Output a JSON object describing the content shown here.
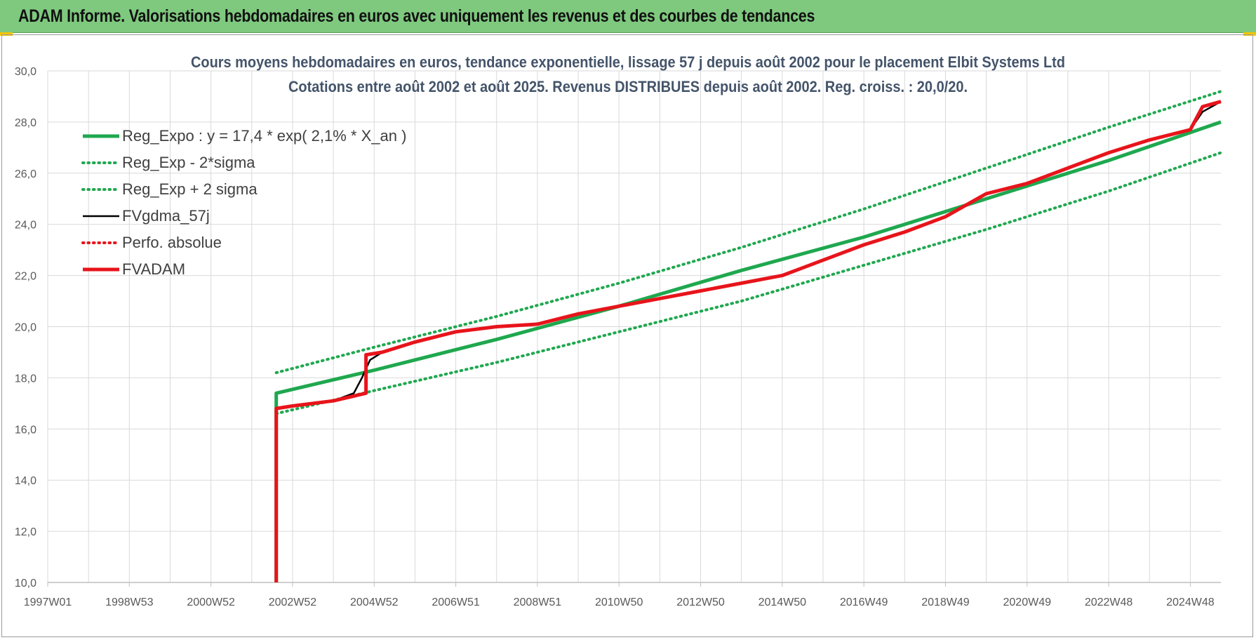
{
  "banner": {
    "title": "ADAM Informe. Valorisations hebdomadaires en euros avec uniquement les revenus et des courbes de tendances"
  },
  "colors": {
    "banner_bg": "#7fc97f",
    "reg_green": "#1fa84f",
    "fv_black": "#000000",
    "adam_red": "#e8141b",
    "grid": "#d9d9d9",
    "title": "#44546a"
  },
  "chart_data": {
    "type": "line",
    "title_lines": [
      "Cours moyens hebdomadaires en euros, tendance exponentielle, lissage 57 j depuis août 2002 pour le placement Elbit Systems Ltd",
      "Cotations entre août 2002 et août 2025. Revenus DISTRIBUES depuis août 2002. Reg. croiss. : 20,0/20."
    ],
    "xlabel": "",
    "ylabel": "",
    "ylim": [
      10,
      30
    ],
    "xlim": [
      1997.0,
      2025.75
    ],
    "y_ticks": [
      "10,0",
      "12,0",
      "14,0",
      "16,0",
      "18,0",
      "20,0",
      "22,0",
      "24,0",
      "26,0",
      "28,0",
      "30,0"
    ],
    "x_ticks": [
      {
        "label": "1997W01",
        "x": 1997.0
      },
      {
        "label": "1998W53",
        "x": 1999.0
      },
      {
        "label": "2000W52",
        "x": 2001.0
      },
      {
        "label": "2002W52",
        "x": 2003.0
      },
      {
        "label": "2004W52",
        "x": 2005.0
      },
      {
        "label": "2006W51",
        "x": 2007.0
      },
      {
        "label": "2008W51",
        "x": 2009.0
      },
      {
        "label": "2010W50",
        "x": 2011.0
      },
      {
        "label": "2012W50",
        "x": 2013.0
      },
      {
        "label": "2014W50",
        "x": 2015.0
      },
      {
        "label": "2016W49",
        "x": 2017.0
      },
      {
        "label": "2018W49",
        "x": 2019.0
      },
      {
        "label": "2020W49",
        "x": 2021.0
      },
      {
        "label": "2022W48",
        "x": 2023.0
      },
      {
        "label": "2024W48",
        "x": 2025.0
      }
    ],
    "grid": true,
    "legend_position": "top-left",
    "series": [
      {
        "name": "Reg_Expo : y = 17,4 * exp( 2,1% *  X_an )",
        "style": "solid-thick",
        "color": "#1fa84f",
        "points": [
          [
            2002.6,
            10.0
          ],
          [
            2002.6,
            17.4
          ],
          [
            2005,
            18.3
          ],
          [
            2008,
            19.5
          ],
          [
            2011,
            20.8
          ],
          [
            2014,
            22.2
          ],
          [
            2017,
            23.5
          ],
          [
            2020,
            25.0
          ],
          [
            2023,
            26.5
          ],
          [
            2025.75,
            28.0
          ]
        ]
      },
      {
        "name": "Reg_Exp - 2*sigma",
        "style": "dotted",
        "color": "#1fa84f",
        "points": [
          [
            2002.6,
            16.6
          ],
          [
            2005,
            17.5
          ],
          [
            2008,
            18.6
          ],
          [
            2011,
            19.8
          ],
          [
            2014,
            21.0
          ],
          [
            2017,
            22.4
          ],
          [
            2020,
            23.8
          ],
          [
            2023,
            25.3
          ],
          [
            2025.75,
            26.8
          ]
        ]
      },
      {
        "name": "Reg_Exp + 2 sigma",
        "style": "dotted",
        "color": "#1fa84f",
        "points": [
          [
            2002.6,
            18.2
          ],
          [
            2005,
            19.2
          ],
          [
            2008,
            20.4
          ],
          [
            2011,
            21.7
          ],
          [
            2014,
            23.1
          ],
          [
            2017,
            24.6
          ],
          [
            2020,
            26.2
          ],
          [
            2023,
            27.8
          ],
          [
            2025.75,
            29.2
          ]
        ]
      },
      {
        "name": "FVgdma_57j",
        "style": "solid",
        "color": "#000000",
        "points": [
          [
            2002.6,
            16.8
          ],
          [
            2003.0,
            16.9
          ],
          [
            2004.0,
            17.1
          ],
          [
            2004.5,
            17.4
          ],
          [
            2004.7,
            18.0
          ],
          [
            2004.9,
            18.7
          ],
          [
            2005.2,
            19.0
          ],
          [
            2006,
            19.4
          ],
          [
            2007,
            19.8
          ],
          [
            2008,
            20.0
          ],
          [
            2009,
            20.1
          ],
          [
            2010,
            20.5
          ],
          [
            2011,
            20.8
          ],
          [
            2012,
            21.1
          ],
          [
            2013,
            21.4
          ],
          [
            2014,
            21.7
          ],
          [
            2015,
            22.0
          ],
          [
            2016,
            22.6
          ],
          [
            2017,
            23.2
          ],
          [
            2018,
            23.7
          ],
          [
            2019,
            24.3
          ],
          [
            2020,
            25.2
          ],
          [
            2021,
            25.6
          ],
          [
            2022,
            26.2
          ],
          [
            2023,
            26.8
          ],
          [
            2024,
            27.3
          ],
          [
            2025.0,
            27.7
          ],
          [
            2025.3,
            28.4
          ],
          [
            2025.75,
            28.8
          ]
        ]
      },
      {
        "name": "Perfo. absolue",
        "style": "dotted",
        "color": "#e8141b",
        "points": []
      },
      {
        "name": "FVADAM",
        "style": "solid-thick",
        "color": "#e8141b",
        "points": [
          [
            2002.6,
            10.0
          ],
          [
            2002.6,
            16.8
          ],
          [
            2003.0,
            16.9
          ],
          [
            2004.0,
            17.1
          ],
          [
            2004.8,
            17.4
          ],
          [
            2004.8,
            18.9
          ],
          [
            2005.2,
            19.0
          ],
          [
            2006,
            19.4
          ],
          [
            2007,
            19.8
          ],
          [
            2008,
            20.0
          ],
          [
            2009,
            20.1
          ],
          [
            2010,
            20.5
          ],
          [
            2011,
            20.8
          ],
          [
            2012,
            21.1
          ],
          [
            2013,
            21.4
          ],
          [
            2014,
            21.7
          ],
          [
            2015,
            22.0
          ],
          [
            2016,
            22.6
          ],
          [
            2017,
            23.2
          ],
          [
            2018,
            23.7
          ],
          [
            2019,
            24.3
          ],
          [
            2020,
            25.2
          ],
          [
            2021,
            25.6
          ],
          [
            2022,
            26.2
          ],
          [
            2023,
            26.8
          ],
          [
            2024,
            27.3
          ],
          [
            2025.0,
            27.7
          ],
          [
            2025.3,
            28.6
          ],
          [
            2025.75,
            28.8
          ]
        ]
      }
    ]
  }
}
